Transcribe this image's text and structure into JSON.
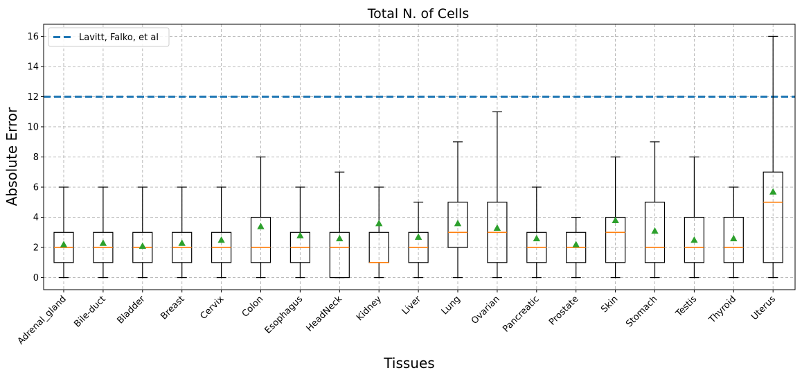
{
  "chart_data": {
    "type": "box",
    "title": "Total N. of Cells",
    "xlabel": "Tissues",
    "ylabel": "Absolute Error",
    "ylim": [
      -0.8,
      16.8
    ],
    "yticks": [
      0,
      2,
      4,
      6,
      8,
      10,
      12,
      14,
      16
    ],
    "grid": true,
    "legend_position": "top-left",
    "reference_line": {
      "name": "Lavitt, Falko, et al",
      "value": 12,
      "color": "#1f77b4",
      "style": "dashed"
    },
    "colors": {
      "box": "#000000",
      "median": "#ff7f0e",
      "mean": "#2ca02c"
    },
    "categories": [
      "Adrenal_gland",
      "Bile-duct",
      "Bladder",
      "Breast",
      "Cervix",
      "Colon",
      "Esophagus",
      "HeadNeck",
      "Kidney",
      "Liver",
      "Lung",
      "Ovarian",
      "Pancreatic",
      "Prostate",
      "Skin",
      "Stomach",
      "Testis",
      "Thyroid",
      "Uterus"
    ],
    "boxes": [
      {
        "whislo": 0,
        "q1": 1,
        "med": 2,
        "q3": 3,
        "whishi": 6,
        "mean": 2.2
      },
      {
        "whislo": 0,
        "q1": 1,
        "med": 2,
        "q3": 3,
        "whishi": 6,
        "mean": 2.3
      },
      {
        "whislo": 0,
        "q1": 1,
        "med": 2,
        "q3": 3,
        "whishi": 6,
        "mean": 2.1
      },
      {
        "whislo": 0,
        "q1": 1,
        "med": 2,
        "q3": 3,
        "whishi": 6,
        "mean": 2.3
      },
      {
        "whislo": 0,
        "q1": 1,
        "med": 2,
        "q3": 3,
        "whishi": 6,
        "mean": 2.5
      },
      {
        "whislo": 0,
        "q1": 1,
        "med": 2,
        "q3": 4,
        "whishi": 8,
        "mean": 3.4
      },
      {
        "whislo": 0,
        "q1": 1,
        "med": 2,
        "q3": 3,
        "whishi": 6,
        "mean": 2.8
      },
      {
        "whislo": 0,
        "q1": 0,
        "med": 2,
        "q3": 3,
        "whishi": 7,
        "mean": 2.6
      },
      {
        "whislo": 0,
        "q1": 1,
        "med": 1,
        "q3": 3,
        "whishi": 6,
        "mean": 3.6
      },
      {
        "whislo": 0,
        "q1": 1,
        "med": 2,
        "q3": 3,
        "whishi": 5,
        "mean": 2.7
      },
      {
        "whislo": 0,
        "q1": 2,
        "med": 3,
        "q3": 5,
        "whishi": 9,
        "mean": 3.6
      },
      {
        "whislo": 0,
        "q1": 1,
        "med": 3,
        "q3": 5,
        "whishi": 11,
        "mean": 3.3
      },
      {
        "whislo": 0,
        "q1": 1,
        "med": 2,
        "q3": 3,
        "whishi": 6,
        "mean": 2.6
      },
      {
        "whislo": 0,
        "q1": 1,
        "med": 2,
        "q3": 3,
        "whishi": 4,
        "mean": 2.2
      },
      {
        "whislo": 0,
        "q1": 1,
        "med": 3,
        "q3": 4,
        "whishi": 8,
        "mean": 3.8
      },
      {
        "whislo": 0,
        "q1": 1,
        "med": 2,
        "q3": 5,
        "whishi": 9,
        "mean": 3.1
      },
      {
        "whislo": 0,
        "q1": 1,
        "med": 2,
        "q3": 4,
        "whishi": 8,
        "mean": 2.5
      },
      {
        "whislo": 0,
        "q1": 1,
        "med": 2,
        "q3": 4,
        "whishi": 6,
        "mean": 2.6
      },
      {
        "whislo": 0,
        "q1": 1,
        "med": 5,
        "q3": 7,
        "whishi": 16,
        "mean": 5.7
      }
    ]
  }
}
